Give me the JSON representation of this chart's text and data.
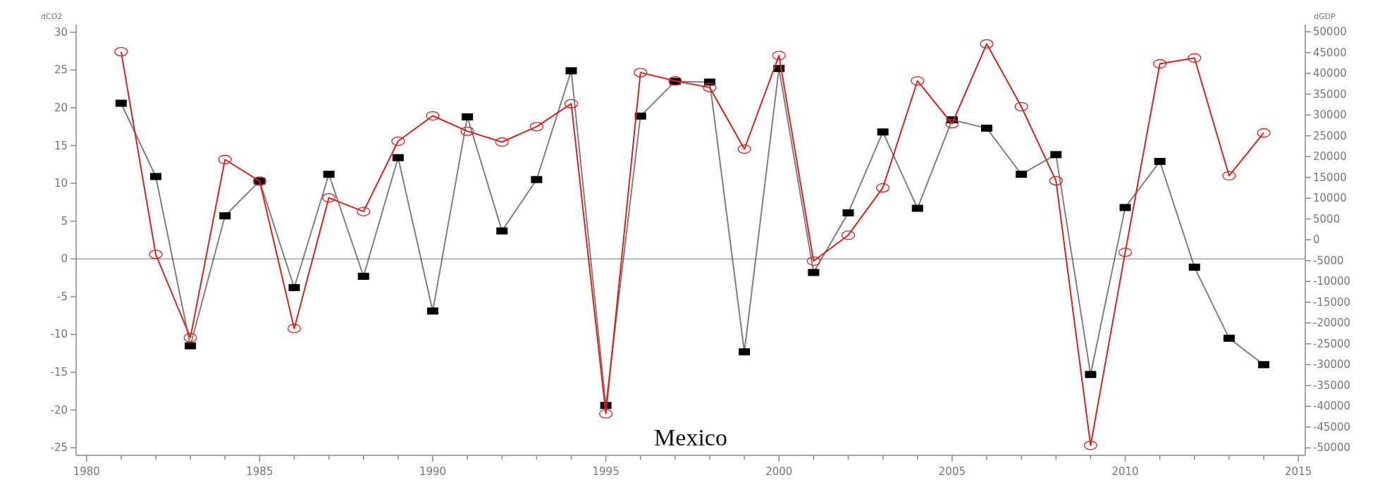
{
  "chart_data": {
    "type": "line",
    "title": "Mexico",
    "ylabel": "dCO2",
    "y2label": "dGDP",
    "x": [
      1981,
      1982,
      1983,
      1984,
      1985,
      1986,
      1987,
      1988,
      1989,
      1990,
      1991,
      1992,
      1993,
      1994,
      1995,
      1996,
      1997,
      1998,
      1999,
      2000,
      2001,
      2002,
      2003,
      2004,
      2005,
      2006,
      2007,
      2008,
      2009,
      2010,
      2011,
      2012,
      2013,
      2014
    ],
    "series": [
      {
        "color": "#000000",
        "marker": "square",
        "values": [
          20.6,
          10.9,
          -11.5,
          5.7,
          10.3,
          -3.8,
          11.2,
          -2.3,
          13.4,
          -6.9,
          18.8,
          3.7,
          10.5,
          24.9,
          -19.4,
          18.9,
          23.5,
          23.4,
          -12.3,
          25.2,
          -1.8,
          6.1,
          16.8,
          6.7,
          18.4,
          17.3,
          11.2,
          13.8,
          -15.3,
          6.8,
          12.9,
          -1.1,
          -10.5,
          -14.0
        ]
      },
      {
        "color": "#e0201e",
        "marker": "circle",
        "axis": "y2",
        "values": [
          45200,
          -3500,
          -23500,
          19300,
          14100,
          -21300,
          10100,
          6800,
          23700,
          29800,
          26100,
          23500,
          27200,
          32700,
          -41800,
          40200,
          38200,
          36600,
          21800,
          44300,
          -5100,
          1100,
          12500,
          38200,
          27900,
          47100,
          32000,
          14200,
          -49400,
          -3000,
          42300,
          43700,
          15400,
          25700
        ]
      }
    ],
    "xlim": [
      1979.7,
      2015.2
    ],
    "xticks": [
      1980,
      {
        "value": 1981,
        "label": null
      },
      {
        "value": 1982,
        "label": null
      },
      {
        "value": 1983,
        "label": null
      },
      {
        "value": 1984,
        "label": null
      },
      1985,
      {
        "value": 1986,
        "label": null
      },
      {
        "value": 1987,
        "label": null
      },
      {
        "value": 1988,
        "label": null
      },
      {
        "value": 1989,
        "label": null
      },
      1990,
      {
        "value": 1991,
        "label": null
      },
      {
        "value": 1992,
        "label": null
      },
      {
        "value": 1993,
        "label": null
      },
      {
        "value": 1994,
        "label": null
      },
      1995,
      {
        "value": 1996,
        "label": null
      },
      {
        "value": 1997,
        "label": null
      },
      {
        "value": 1998,
        "label": null
      },
      {
        "value": 1999,
        "label": null
      },
      2000,
      {
        "value": 2001,
        "label": null
      },
      {
        "value": 2002,
        "label": null
      },
      {
        "value": 2003,
        "label": null
      },
      {
        "value": 2004,
        "label": null
      },
      2005,
      {
        "value": 2006,
        "label": null
      },
      {
        "value": 2007,
        "label": null
      },
      {
        "value": 2008,
        "label": null
      },
      {
        "value": 2009,
        "label": null
      },
      2010,
      {
        "value": 2011,
        "label": null
      },
      {
        "value": 2012,
        "label": null
      },
      {
        "value": 2013,
        "label": null
      },
      {
        "value": 2014,
        "label": null
      },
      2015
    ],
    "ylim": [
      -26,
      31
    ],
    "yticks": [
      -25,
      -20,
      -15,
      -10,
      -5,
      0,
      5,
      10,
      15,
      20,
      25,
      30
    ],
    "y2lim": [
      -51800,
      51700
    ],
    "y2ticks": [
      -50000,
      -45000,
      -40000,
      -35000,
      -30000,
      -25000,
      -20000,
      -15000,
      -10000,
      -5000,
      0,
      5000,
      10000,
      15000,
      20000,
      25000,
      30000,
      35000,
      40000,
      45000,
      50000
    ],
    "ref_lines": [
      {
        "axis": "y",
        "value": 0,
        "color": "#999999"
      }
    ],
    "grid": false
  }
}
